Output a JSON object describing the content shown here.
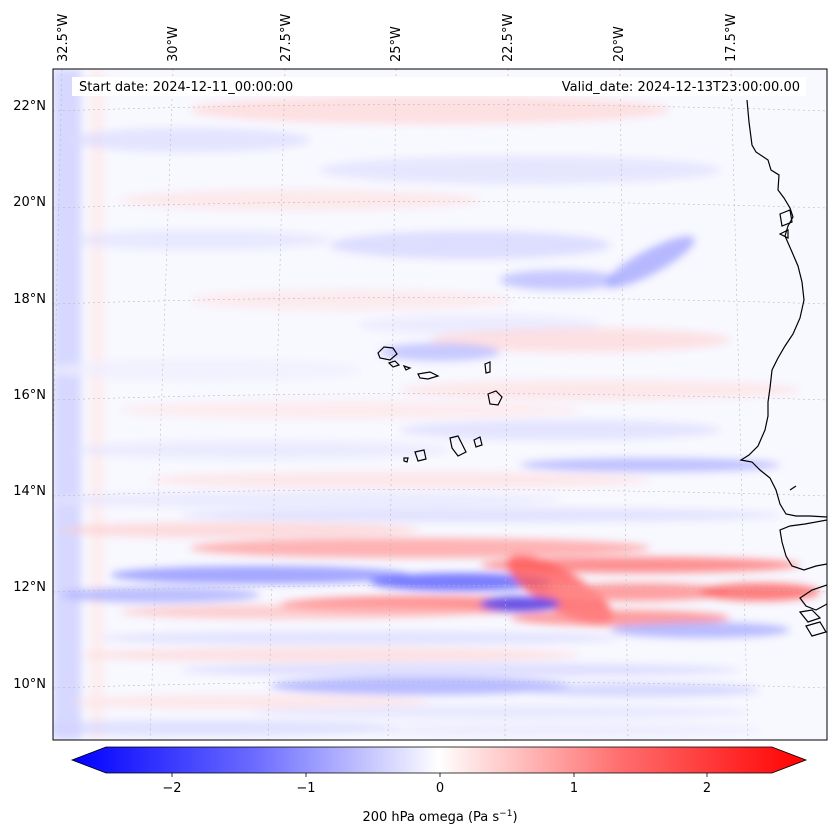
{
  "header": {
    "start_date": "Start date: 2024-12-11_00:00:00",
    "valid_date": "Valid_date: 2024-12-13T23:00:00.00"
  },
  "axes": {
    "lon_labels": [
      "32.5°W",
      "30°W",
      "27.5°W",
      "25°W",
      "22.5°W",
      "20°W",
      "17.5°W"
    ],
    "lat_labels": [
      "22°N",
      "20°N",
      "18°N",
      "16°N",
      "14°N",
      "12°N",
      "10°N"
    ]
  },
  "colorbar": {
    "ticks": [
      "−2",
      "−1",
      "0",
      "1",
      "2"
    ],
    "label_prefix": "200 hPa omega (Pa s",
    "label_exp": "−1",
    "label_suffix": ")",
    "min_color": "#0000ff",
    "mid_color": "#ffffff",
    "max_color": "#ff0000"
  }
}
